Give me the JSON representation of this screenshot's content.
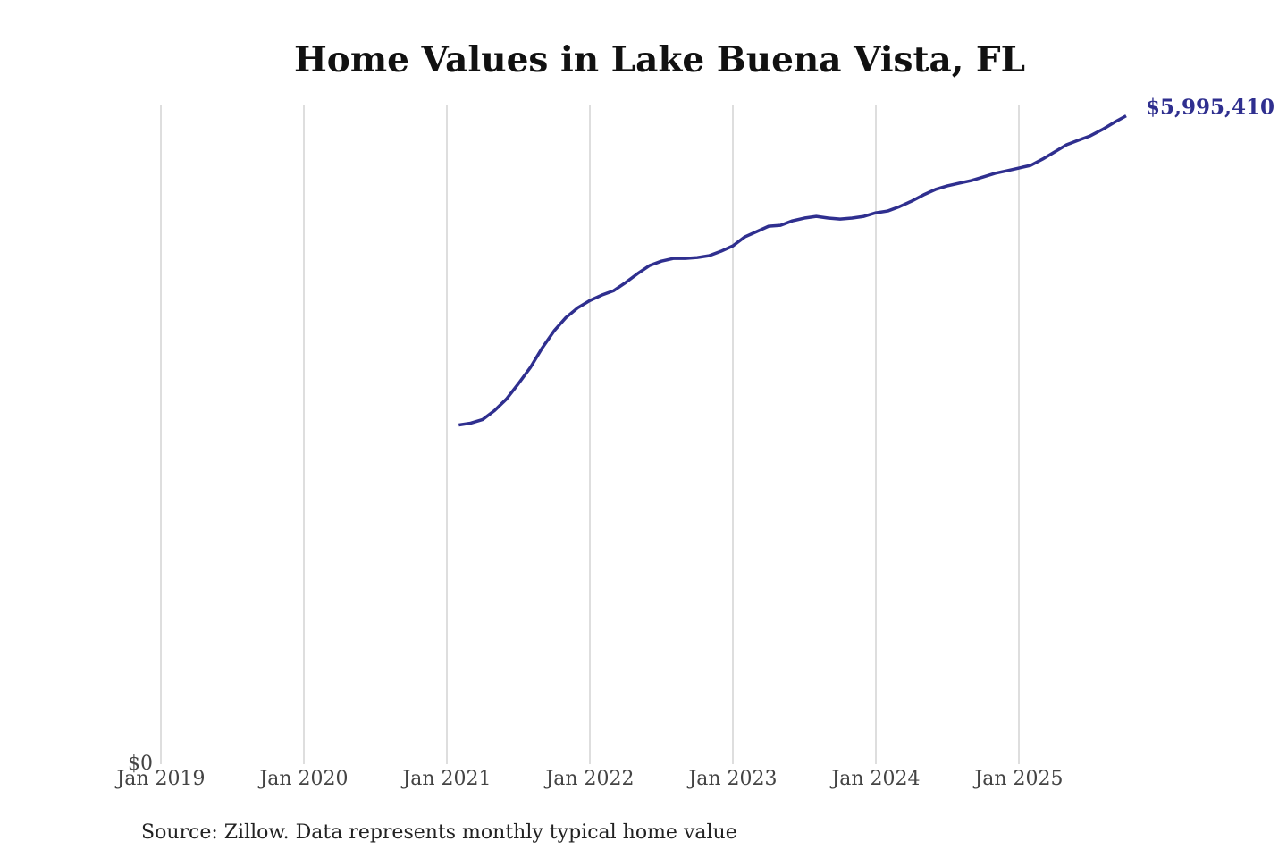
{
  "chart_data": {
    "type": "line",
    "title": "Home Values in Lake Buena Vista, FL",
    "source": "Source: Zillow. Data represents monthly typical home value",
    "x": [
      "2021-02",
      "2021-03",
      "2021-04",
      "2021-05",
      "2021-06",
      "2021-07",
      "2021-08",
      "2021-09",
      "2021-10",
      "2021-11",
      "2021-12",
      "2022-01",
      "2022-02",
      "2022-03",
      "2022-04",
      "2022-05",
      "2022-06",
      "2022-07",
      "2022-08",
      "2022-09",
      "2022-10",
      "2022-11",
      "2022-12",
      "2023-01",
      "2023-02",
      "2023-03",
      "2023-04",
      "2023-05",
      "2023-06",
      "2023-07",
      "2023-08",
      "2023-09",
      "2023-10",
      "2023-11",
      "2023-12",
      "2024-01",
      "2024-02",
      "2024-03",
      "2024-04",
      "2024-05",
      "2024-06",
      "2024-07",
      "2024-08",
      "2024-09",
      "2024-10",
      "2024-11",
      "2024-12",
      "2025-01",
      "2025-02",
      "2025-03",
      "2025-04",
      "2025-05",
      "2025-06",
      "2025-07",
      "2025-08",
      "2025-09",
      "2025-10"
    ],
    "series": [
      {
        "name": "Home value",
        "color": "#2f2f8f",
        "values": [
          3137000,
          3154000,
          3187000,
          3270000,
          3377000,
          3518000,
          3667000,
          3849000,
          4007000,
          4131000,
          4222000,
          4288000,
          4338000,
          4379000,
          4454000,
          4536000,
          4611000,
          4652000,
          4677000,
          4677000,
          4685000,
          4702000,
          4743000,
          4793000,
          4876000,
          4925000,
          4975000,
          4983000,
          5025000,
          5050000,
          5066000,
          5050000,
          5041000,
          5050000,
          5066000,
          5099000,
          5116000,
          5157000,
          5207000,
          5265000,
          5315000,
          5348000,
          5373000,
          5397000,
          5430000,
          5464000,
          5488000,
          5513000,
          5538000,
          5596000,
          5662000,
          5728000,
          5770000,
          5811000,
          5869000,
          5935000,
          5995410
        ],
        "value_labels": [
          null,
          null,
          null,
          null,
          null,
          null,
          null,
          null,
          null,
          null,
          null,
          null,
          null,
          null,
          null,
          null,
          null,
          null,
          null,
          null,
          null,
          null,
          null,
          null,
          null,
          null,
          null,
          null,
          null,
          null,
          null,
          null,
          null,
          null,
          null,
          null,
          null,
          null,
          null,
          null,
          null,
          null,
          null,
          null,
          null,
          null,
          null,
          null,
          null,
          null,
          null,
          null,
          null,
          null,
          null,
          null,
          "$5,995,410"
        ]
      }
    ],
    "xlim": [
      "2019-01",
      "2025-10"
    ],
    "xticks": [
      {
        "value": "2019-01",
        "label": "Jan 2019"
      },
      {
        "value": "2020-01",
        "label": "Jan 2020"
      },
      {
        "value": "2021-01",
        "label": "Jan 2021"
      },
      {
        "value": "2022-01",
        "label": "Jan 2022"
      },
      {
        "value": "2023-01",
        "label": "Jan 2023"
      },
      {
        "value": "2024-01",
        "label": "Jan 2024"
      },
      {
        "value": "2025-01",
        "label": "Jan 2025"
      }
    ],
    "ylim": [
      0,
      6100000
    ],
    "yticks": [
      {
        "value": 0,
        "label": "$0"
      }
    ],
    "grid": true
  }
}
